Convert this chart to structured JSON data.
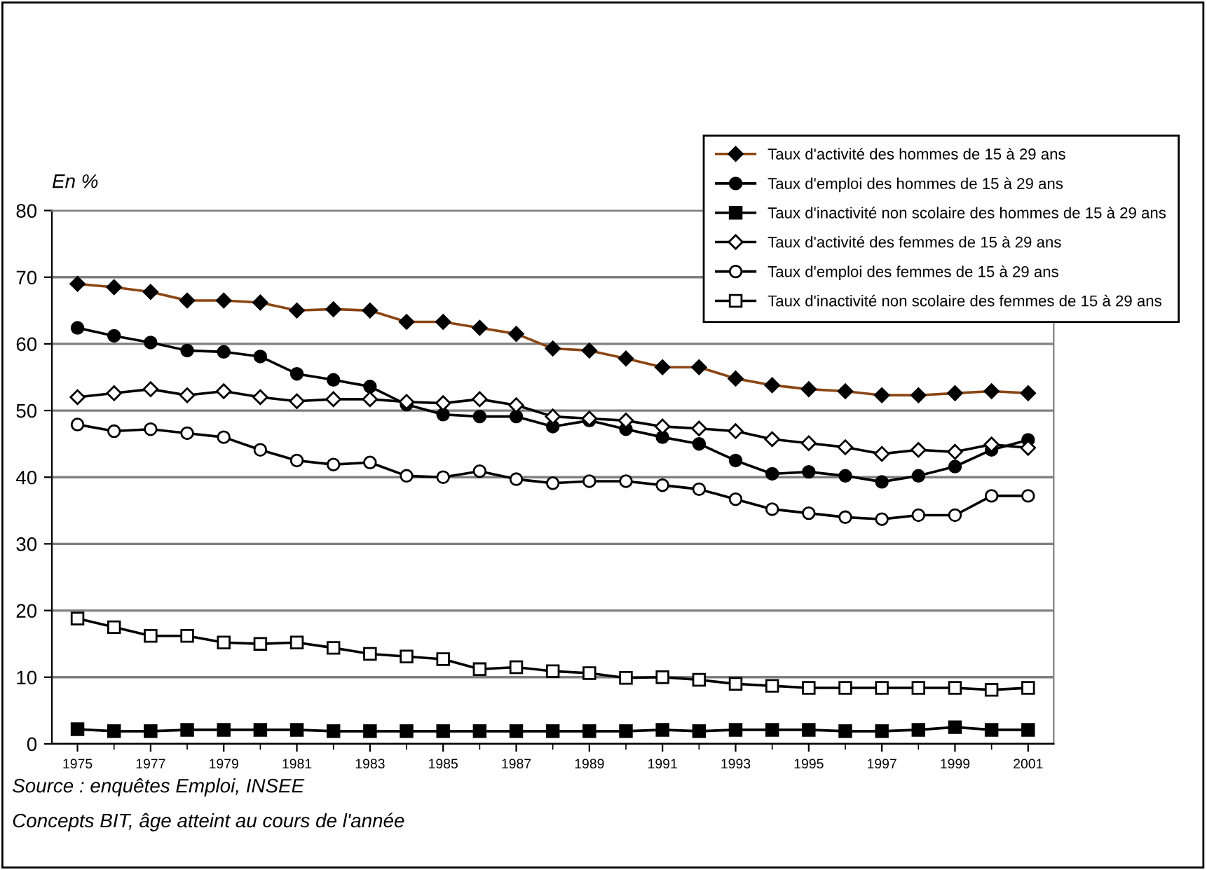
{
  "chart_data": {
    "type": "line",
    "ylabel": "En %",
    "x": [
      1975,
      1976,
      1977,
      1978,
      1979,
      1980,
      1981,
      1982,
      1983,
      1984,
      1985,
      1986,
      1987,
      1988,
      1989,
      1990,
      1991,
      1992,
      1993,
      1994,
      1995,
      1996,
      1997,
      1998,
      1999,
      2000,
      2001
    ],
    "series": [
      {
        "name": "Taux d'activité des hommes de 15 à 29 ans",
        "color": "#8b4513",
        "marker": "diamond",
        "values": [
          69,
          68.5,
          67.8,
          66.5,
          66.5,
          66.2,
          65,
          65.2,
          65,
          63.3,
          63.3,
          62.4,
          61.5,
          59.3,
          59,
          57.8,
          56.5,
          56.5,
          54.8,
          53.8,
          53.2,
          52.9,
          52.3,
          52.3,
          52.6,
          52.9,
          52.6
        ]
      },
      {
        "name": "Taux d'emploi des hommes de 15 à 29 ans",
        "color": "#000000",
        "marker": "circle",
        "values": [
          62.4,
          61.2,
          60.2,
          59,
          58.8,
          58.1,
          55.5,
          54.6,
          53.6,
          50.9,
          49.4,
          49.1,
          49.1,
          47.6,
          48.5,
          47.2,
          46,
          45,
          42.5,
          40.5,
          40.8,
          40.2,
          39.3,
          40.2,
          41.6,
          44.1,
          45.6
        ]
      },
      {
        "name": "Taux d'inactivité non scolaire des hommes de 15 à 29 ans",
        "color": "#000000",
        "marker": "square",
        "values": [
          2.2,
          1.9,
          1.9,
          2.1,
          2.1,
          2.1,
          2.1,
          1.9,
          1.9,
          1.9,
          1.9,
          1.9,
          1.9,
          1.9,
          1.9,
          1.9,
          2.1,
          1.9,
          2.1,
          2.1,
          2.1,
          1.9,
          1.9,
          2.1,
          2.5,
          2.1,
          2.1
        ]
      },
      {
        "name": "Taux d'activité des femmes de 15 à 29 ans",
        "color": "#000000",
        "marker": "diamond",
        "values": [
          52,
          52.6,
          53.2,
          52.3,
          52.9,
          52,
          51.4,
          51.7,
          51.7,
          51.3,
          51.1,
          51.7,
          50.8,
          49.1,
          48.8,
          48.5,
          47.6,
          47.3,
          46.9,
          45.7,
          45.1,
          44.5,
          43.5,
          44.1,
          43.8,
          44.9,
          44.4
        ]
      },
      {
        "name": "Taux d'emploi des femmes de 15 à 29 ans",
        "color": "#000000",
        "marker": "circle",
        "values": [
          47.9,
          46.9,
          47.2,
          46.6,
          46,
          44.1,
          42.5,
          41.9,
          42.2,
          40.2,
          40,
          40.9,
          39.7,
          39.1,
          39.4,
          39.4,
          38.8,
          38.2,
          36.7,
          35.2,
          34.6,
          34,
          33.7,
          34.3,
          34.3,
          37.2,
          37.2
        ]
      },
      {
        "name": "Taux d'inactivité non scolaire des femmes de 15 à 29 ans",
        "color": "#000000",
        "marker": "square",
        "values": [
          18.8,
          17.5,
          16.2,
          16.2,
          15.2,
          15,
          15.2,
          14.4,
          13.5,
          13.1,
          12.7,
          11.2,
          11.5,
          10.9,
          10.6,
          9.9,
          10,
          9.6,
          9,
          8.7,
          8.4,
          8.4,
          8.4,
          8.4,
          8.4,
          8.1,
          8.4
        ]
      }
    ],
    "xlim": [
      1974.3,
      2001.7
    ],
    "xticks": [
      1975,
      1977,
      1979,
      1981,
      1983,
      1985,
      1987,
      1989,
      1991,
      1993,
      1995,
      1997,
      1999,
      2001
    ],
    "ylim": [
      0,
      80
    ],
    "yticks": [
      0,
      10,
      20,
      30,
      40,
      50,
      60,
      70,
      80
    ],
    "grid": "y",
    "legend": "top right",
    "line_style": "solid",
    "annotations": [
      "Source : enquêtes Emploi, INSEE",
      "Concepts BIT, âge atteint au cours de l'année"
    ]
  }
}
